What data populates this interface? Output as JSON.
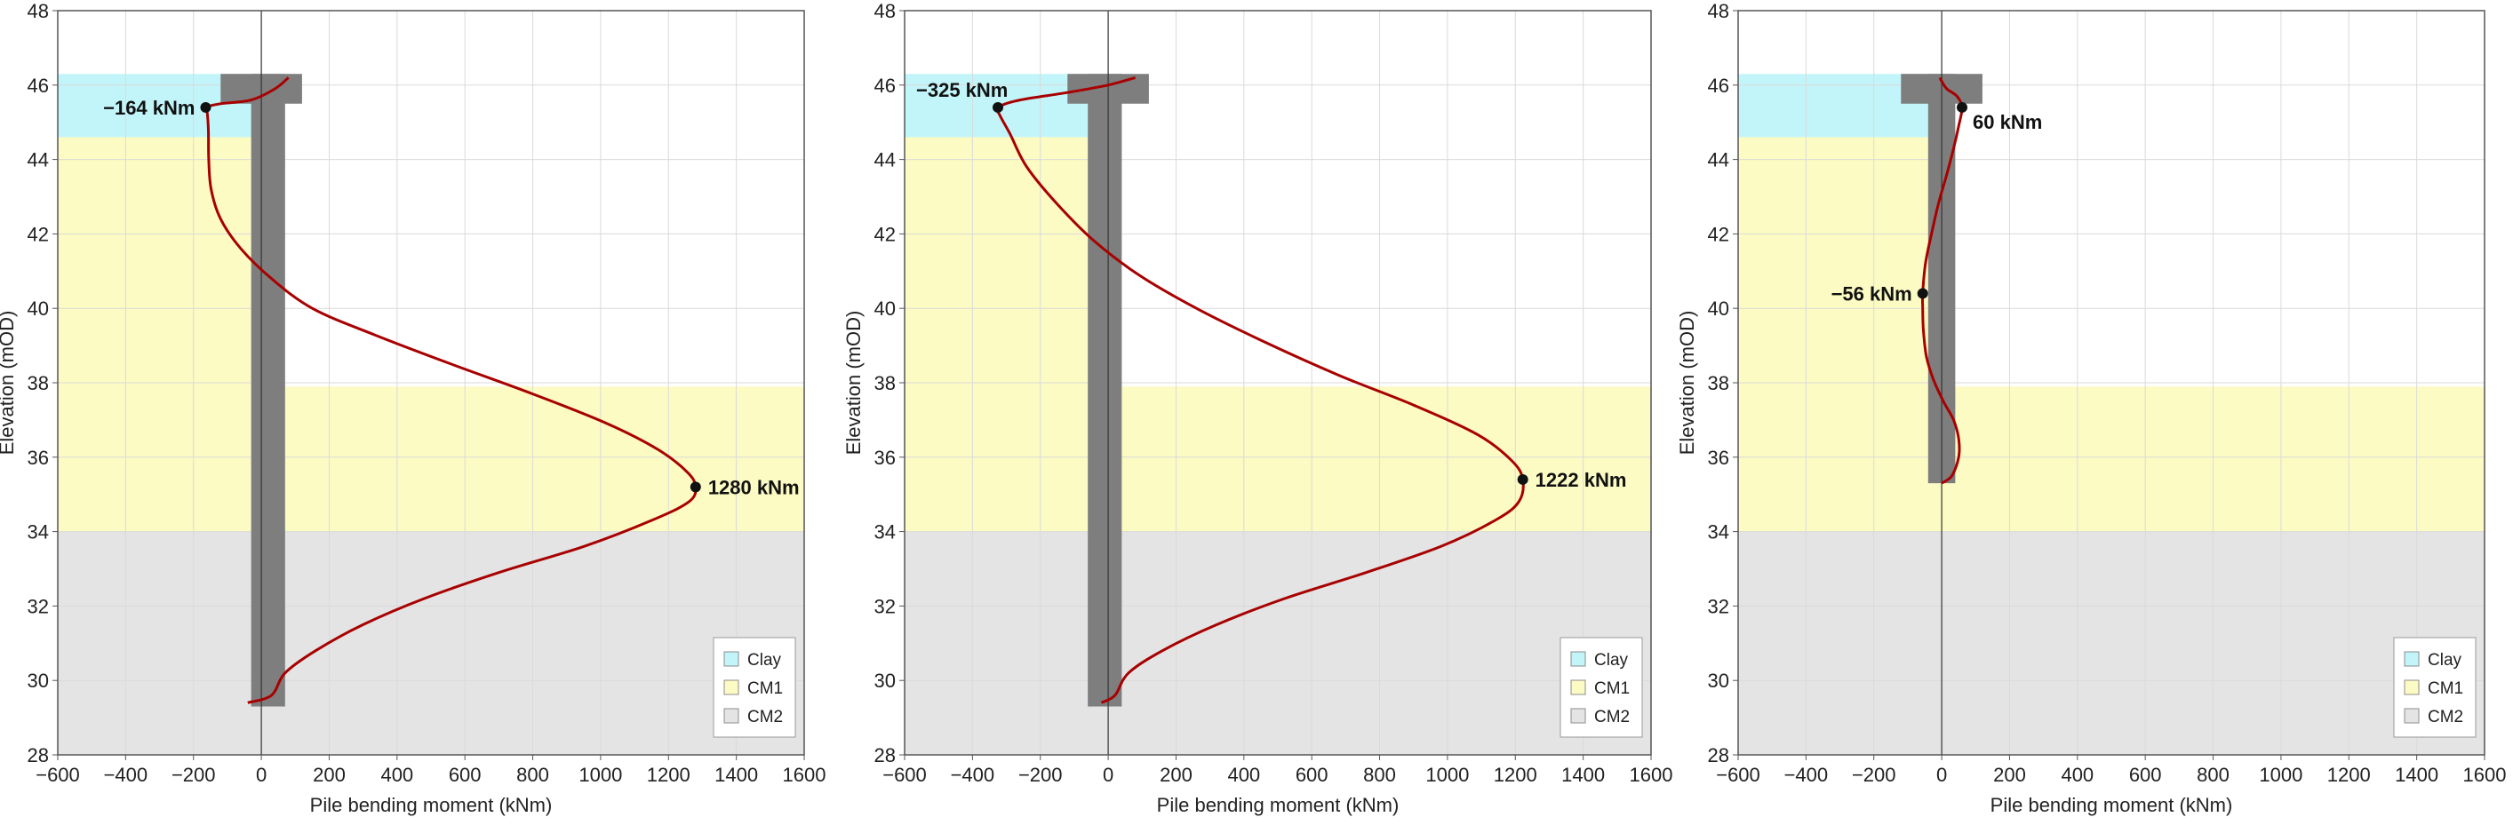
{
  "colors": {
    "clay": "#c2f5f9",
    "cm1": "#fcfbc3",
    "cm2": "#e4e4e4",
    "pile": "#7e7e7e",
    "curve": "#a80000",
    "grid": "#dadada",
    "frame": "#555555",
    "zero_line": "#333333"
  },
  "legend": [
    {
      "key": "clay",
      "label": "Clay"
    },
    {
      "key": "cm1",
      "label": "CM1"
    },
    {
      "key": "cm2",
      "label": "CM2"
    }
  ],
  "chart_data": [
    {
      "type": "line",
      "xlabel": "Pile bending moment (kNm)",
      "ylabel": "Elevation (mOD)",
      "xlim": [
        -600,
        1600
      ],
      "ylim": [
        28,
        48
      ],
      "xticks": [
        -600,
        -400,
        -200,
        0,
        200,
        400,
        600,
        800,
        1000,
        1200,
        1400,
        1600
      ],
      "xtick_labels": [
        "−600",
        "−400",
        "−200",
        "0",
        "200",
        "400",
        "600",
        "800",
        "1000",
        "1200",
        "1400",
        "1600"
      ],
      "yticks": [
        28,
        30,
        32,
        34,
        36,
        38,
        40,
        42,
        44,
        46,
        48
      ],
      "ytick_labels": [
        "28",
        "30",
        "32",
        "34",
        "36",
        "38",
        "40",
        "42",
        "44",
        "46",
        "48"
      ],
      "grid": true,
      "legend_position": "bottom-right",
      "layers": [
        {
          "key": "clay",
          "x_from": -600,
          "x_to": 0,
          "top": 46.3,
          "bottom": 44.6
        },
        {
          "key": "cm1",
          "x_from": -600,
          "x_to": 0,
          "top": 44.6,
          "bottom": 34.0
        },
        {
          "key": "cm1",
          "x_from": 0,
          "x_to": 1600,
          "top": 37.9,
          "bottom": 34.0
        },
        {
          "key": "cm2",
          "x_from": -600,
          "x_to": 1600,
          "top": 34.0,
          "bottom": 28.0
        }
      ],
      "pile": {
        "x_left": -30,
        "x_right": 70,
        "top": 46.3,
        "bottom": 29.3,
        "cap_x_left": -120,
        "cap_x_right": 120,
        "cap_bottom": 45.5
      },
      "series": [
        {
          "name": "Pile bending moment",
          "points": [
            [
              -40,
              29.4
            ],
            [
              30,
              29.6
            ],
            [
              70,
              30.2
            ],
            [
              160,
              30.8
            ],
            [
              300,
              31.5
            ],
            [
              480,
              32.2
            ],
            [
              700,
              32.9
            ],
            [
              950,
              33.6
            ],
            [
              1150,
              34.3
            ],
            [
              1260,
              34.8
            ],
            [
              1280,
              35.2
            ],
            [
              1255,
              35.6
            ],
            [
              1170,
              36.2
            ],
            [
              1020,
              36.9
            ],
            [
              800,
              37.7
            ],
            [
              560,
              38.5
            ],
            [
              330,
              39.3
            ],
            [
              150,
              40.0
            ],
            [
              30,
              40.8
            ],
            [
              -60,
              41.6
            ],
            [
              -120,
              42.4
            ],
            [
              -148,
              43.2
            ],
            [
              -155,
              44.0
            ],
            [
              -156,
              44.8
            ],
            [
              -160,
              45.3
            ],
            [
              -164,
              45.4
            ],
            [
              -120,
              45.5
            ],
            [
              -30,
              45.6
            ],
            [
              40,
              45.9
            ],
            [
              80,
              46.2
            ]
          ]
        }
      ],
      "peak_labels": [
        {
          "text": "−164 kNm",
          "x": -164,
          "y": 45.4,
          "anchor": "end"
        },
        {
          "text": "1280 kNm",
          "x": 1280,
          "y": 35.2,
          "anchor": "start"
        }
      ]
    },
    {
      "type": "line",
      "xlabel": "Pile bending moment (kNm)",
      "ylabel": "Elevation (mOD)",
      "xlim": [
        -600,
        1600
      ],
      "ylim": [
        28,
        48
      ],
      "xticks": [
        -600,
        -400,
        -200,
        0,
        200,
        400,
        600,
        800,
        1000,
        1200,
        1400,
        1600
      ],
      "xtick_labels": [
        "−600",
        "−400",
        "−200",
        "0",
        "200",
        "400",
        "600",
        "800",
        "1000",
        "1200",
        "1400",
        "1600"
      ],
      "yticks": [
        28,
        30,
        32,
        34,
        36,
        38,
        40,
        42,
        44,
        46,
        48
      ],
      "ytick_labels": [
        "28",
        "30",
        "32",
        "34",
        "36",
        "38",
        "40",
        "42",
        "44",
        "46",
        "48"
      ],
      "grid": true,
      "legend_position": "bottom-right",
      "layers": [
        {
          "key": "clay",
          "x_from": -600,
          "x_to": 0,
          "top": 46.3,
          "bottom": 44.6
        },
        {
          "key": "cm1",
          "x_from": -600,
          "x_to": 0,
          "top": 44.6,
          "bottom": 34.0
        },
        {
          "key": "cm1",
          "x_from": 0,
          "x_to": 1600,
          "top": 37.9,
          "bottom": 34.0
        },
        {
          "key": "cm2",
          "x_from": -600,
          "x_to": 1600,
          "top": 34.0,
          "bottom": 28.0
        }
      ],
      "pile": {
        "x_left": -60,
        "x_right": 40,
        "top": 46.3,
        "bottom": 29.3,
        "cap_x_left": -120,
        "cap_x_right": 120,
        "cap_bottom": 45.5
      },
      "series": [
        {
          "name": "Pile bending moment",
          "points": [
            [
              -20,
              29.4
            ],
            [
              20,
              29.6
            ],
            [
              60,
              30.2
            ],
            [
              160,
              30.8
            ],
            [
              320,
              31.5
            ],
            [
              520,
              32.2
            ],
            [
              760,
              32.9
            ],
            [
              980,
              33.6
            ],
            [
              1140,
              34.3
            ],
            [
              1210,
              34.8
            ],
            [
              1222,
              35.4
            ],
            [
              1190,
              35.9
            ],
            [
              1090,
              36.6
            ],
            [
              900,
              37.4
            ],
            [
              680,
              38.2
            ],
            [
              460,
              39.1
            ],
            [
              260,
              40.0
            ],
            [
              90,
              40.9
            ],
            [
              -40,
              41.8
            ],
            [
              -150,
              42.8
            ],
            [
              -240,
              43.8
            ],
            [
              -290,
              44.7
            ],
            [
              -320,
              45.2
            ],
            [
              -325,
              45.4
            ],
            [
              -260,
              45.6
            ],
            [
              -120,
              45.8
            ],
            [
              0,
              46.0
            ],
            [
              80,
              46.2
            ]
          ]
        }
      ],
      "peak_labels": [
        {
          "text": "−325 kNm",
          "x": -325,
          "y": 45.4,
          "anchor": "start-above"
        },
        {
          "text": "1222 kNm",
          "x": 1222,
          "y": 35.4,
          "anchor": "start"
        }
      ]
    },
    {
      "type": "line",
      "xlabel": "Pile bending moment (kNm)",
      "ylabel": "Elevation (mOD)",
      "xlim": [
        -600,
        1600
      ],
      "ylim": [
        28,
        48
      ],
      "xticks": [
        -600,
        -400,
        -200,
        0,
        200,
        400,
        600,
        800,
        1000,
        1200,
        1400,
        1600
      ],
      "xtick_labels": [
        "−600",
        "−400",
        "−200",
        "0",
        "200",
        "400",
        "600",
        "800",
        "1000",
        "1200",
        "1400",
        "1600"
      ],
      "yticks": [
        28,
        30,
        32,
        34,
        36,
        38,
        40,
        42,
        44,
        46,
        48
      ],
      "ytick_labels": [
        "28",
        "30",
        "32",
        "34",
        "36",
        "38",
        "40",
        "42",
        "44",
        "46",
        "48"
      ],
      "grid": true,
      "legend_position": "bottom-right",
      "layers": [
        {
          "key": "clay",
          "x_from": -600,
          "x_to": 0,
          "top": 46.3,
          "bottom": 44.6
        },
        {
          "key": "cm1",
          "x_from": -600,
          "x_to": 0,
          "top": 44.6,
          "bottom": 34.0
        },
        {
          "key": "cm1",
          "x_from": 0,
          "x_to": 1600,
          "top": 37.9,
          "bottom": 34.0
        },
        {
          "key": "cm2",
          "x_from": -600,
          "x_to": 1600,
          "top": 34.0,
          "bottom": 28.0
        }
      ],
      "pile": {
        "x_left": -40,
        "x_right": 40,
        "top": 46.3,
        "bottom": 35.3,
        "cap_x_left": -120,
        "cap_x_right": 120,
        "cap_bottom": 45.5
      },
      "series": [
        {
          "name": "Pile bending moment",
          "points": [
            [
              0,
              35.3
            ],
            [
              30,
              35.5
            ],
            [
              50,
              36.0
            ],
            [
              50,
              36.5
            ],
            [
              35,
              37.0
            ],
            [
              5,
              37.5
            ],
            [
              -25,
              38.1
            ],
            [
              -45,
              38.7
            ],
            [
              -54,
              39.4
            ],
            [
              -56,
              40.0
            ],
            [
              -56,
              40.4
            ],
            [
              -48,
              41.2
            ],
            [
              -30,
              42.0
            ],
            [
              -10,
              42.8
            ],
            [
              15,
              43.6
            ],
            [
              35,
              44.3
            ],
            [
              50,
              44.9
            ],
            [
              60,
              45.4
            ],
            [
              45,
              45.7
            ],
            [
              15,
              45.9
            ],
            [
              0,
              46.1
            ],
            [
              -5,
              46.2
            ]
          ]
        }
      ],
      "peak_labels": [
        {
          "text": "60 kNm",
          "x": 60,
          "y": 45.4,
          "anchor": "start-below"
        },
        {
          "text": "−56 kNm",
          "x": -56,
          "y": 40.4,
          "anchor": "end"
        }
      ]
    }
  ]
}
